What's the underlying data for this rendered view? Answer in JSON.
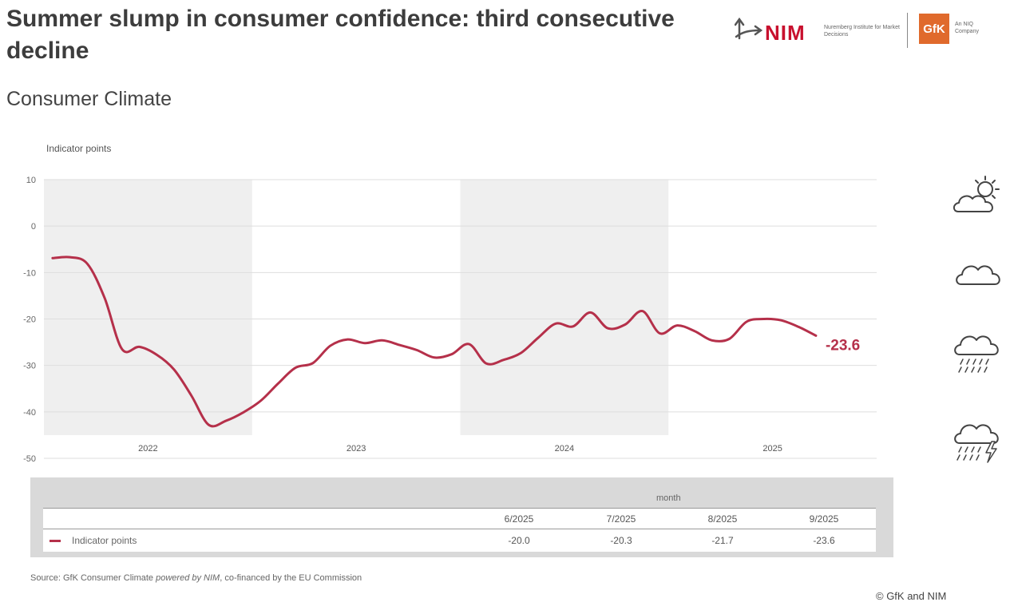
{
  "header": {
    "title": "Summer slump in consumer confidence: third consecutive decline",
    "subtitle": "Consumer Climate"
  },
  "logos": {
    "nim_text": "NIM",
    "nim_sub": "Nuremberg Institute for Market Decisions",
    "gfk_text": "GfK",
    "gfk_sub": "An NIQ Company"
  },
  "chart_data": {
    "type": "line",
    "title": "",
    "ylabel": "Indicator points",
    "xlabel": "",
    "ylim": [
      -50,
      10
    ],
    "yticks": [
      10,
      0,
      -10,
      -20,
      -30,
      -40,
      -50
    ],
    "years": [
      "2022",
      "2023",
      "2024",
      "2025"
    ],
    "shaded_years": [
      "2022",
      "2024"
    ],
    "grid": true,
    "series": [
      {
        "name": "Indicator points",
        "color": "#b5304a",
        "x": [
          "2022-01",
          "2022-02",
          "2022-03",
          "2022-04",
          "2022-05",
          "2022-06",
          "2022-07",
          "2022-08",
          "2022-09",
          "2022-10",
          "2022-11",
          "2022-12",
          "2023-01",
          "2023-02",
          "2023-03",
          "2023-04",
          "2023-05",
          "2023-06",
          "2023-07",
          "2023-08",
          "2023-09",
          "2023-10",
          "2023-11",
          "2023-12",
          "2024-01",
          "2024-02",
          "2024-03",
          "2024-04",
          "2024-05",
          "2024-06",
          "2024-07",
          "2024-08",
          "2024-09",
          "2024-10",
          "2024-11",
          "2024-12",
          "2025-01",
          "2025-02",
          "2025-03",
          "2025-04",
          "2025-05",
          "2025-06",
          "2025-07",
          "2025-08",
          "2025-09"
        ],
        "values": [
          -6.9,
          -6.7,
          -8.1,
          -15.5,
          -26.5,
          -26.0,
          -27.7,
          -30.9,
          -36.5,
          -42.8,
          -41.9,
          -40.1,
          -37.6,
          -33.9,
          -30.5,
          -29.5,
          -25.8,
          -24.4,
          -25.2,
          -24.6,
          -25.6,
          -26.7,
          -28.3,
          -27.6,
          -25.4,
          -29.6,
          -28.8,
          -27.3,
          -24.0,
          -21.0,
          -21.6,
          -18.6,
          -22.0,
          -21.2,
          -18.3,
          -23.1,
          -21.4,
          -22.6,
          -24.6,
          -24.3,
          -20.6,
          -20.0,
          -20.3,
          -21.7,
          -23.6
        ]
      }
    ],
    "annotations": [
      {
        "text": "-23.6",
        "x": "2025-09",
        "y": -23.6
      }
    ],
    "table": {
      "header_label": "month",
      "columns": [
        "6/2025",
        "7/2025",
        "8/2025",
        "9/2025"
      ],
      "row_label": "Indicator points",
      "values": [
        "-20.0",
        "-20.3",
        "-21.7",
        "-23.6"
      ]
    }
  },
  "weather_icons": [
    "sun-cloud-icon",
    "cloud-icon",
    "rain-cloud-icon",
    "thunderstorm-icon"
  ],
  "footer": {
    "source_prefix": "Source: GfK Consumer Climate ",
    "source_italic": "powered by NIM",
    "source_suffix": ", co-financed by the EU Commission",
    "copyright": "© GfK and NIM"
  }
}
